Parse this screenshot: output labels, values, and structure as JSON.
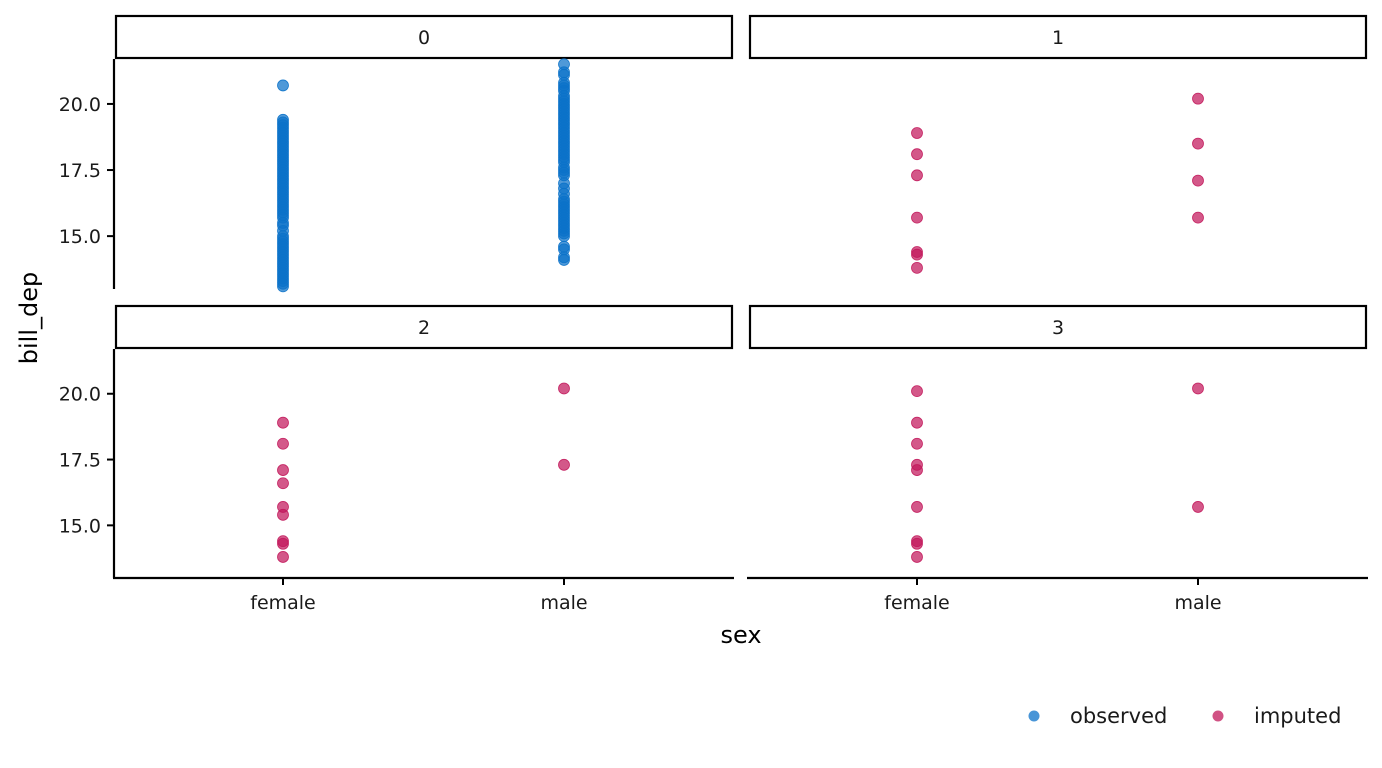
{
  "colors": {
    "observed": "#0b72c9",
    "imputed": "#c2185b"
  },
  "chart_data": {
    "type": "scatter",
    "facet_by": "imputation",
    "facets": [
      "0",
      "1",
      "2",
      "3"
    ],
    "xlabel": "sex",
    "ylabel": "bill_dep",
    "categories": [
      "female",
      "male"
    ],
    "ylim": [
      13.0,
      21.7
    ],
    "yticks": [
      15.0,
      17.5,
      20.0
    ],
    "ytick_labels": [
      "15.0",
      "17.5",
      "20.0"
    ],
    "grid": false,
    "legend": {
      "position": "bottom-right",
      "entries": [
        {
          "key": "observed",
          "label": "observed"
        },
        {
          "key": "imputed",
          "label": "imputed"
        }
      ]
    },
    "panels": [
      {
        "facet": "0",
        "series": [
          {
            "name": "observed",
            "points": [
              {
                "x": "female",
                "y": 20.7
              },
              {
                "x": "female",
                "y": 19.4
              },
              {
                "x": "female",
                "y": 19.3
              },
              {
                "x": "female",
                "y": 19.2
              },
              {
                "x": "female",
                "y": 19.1
              },
              {
                "x": "female",
                "y": 19.0
              },
              {
                "x": "female",
                "y": 18.9
              },
              {
                "x": "female",
                "y": 18.8
              },
              {
                "x": "female",
                "y": 18.7
              },
              {
                "x": "female",
                "y": 18.6
              },
              {
                "x": "female",
                "y": 18.5
              },
              {
                "x": "female",
                "y": 18.4
              },
              {
                "x": "female",
                "y": 18.3
              },
              {
                "x": "female",
                "y": 18.2
              },
              {
                "x": "female",
                "y": 18.1
              },
              {
                "x": "female",
                "y": 18.0
              },
              {
                "x": "female",
                "y": 17.9
              },
              {
                "x": "female",
                "y": 17.8
              },
              {
                "x": "female",
                "y": 17.7
              },
              {
                "x": "female",
                "y": 17.6
              },
              {
                "x": "female",
                "y": 17.5
              },
              {
                "x": "female",
                "y": 17.4
              },
              {
                "x": "female",
                "y": 17.3
              },
              {
                "x": "female",
                "y": 17.2
              },
              {
                "x": "female",
                "y": 17.1
              },
              {
                "x": "female",
                "y": 17.0
              },
              {
                "x": "female",
                "y": 16.9
              },
              {
                "x": "female",
                "y": 16.8
              },
              {
                "x": "female",
                "y": 16.7
              },
              {
                "x": "female",
                "y": 16.6
              },
              {
                "x": "female",
                "y": 16.5
              },
              {
                "x": "female",
                "y": 16.4
              },
              {
                "x": "female",
                "y": 16.3
              },
              {
                "x": "female",
                "y": 16.2
              },
              {
                "x": "female",
                "y": 16.1
              },
              {
                "x": "female",
                "y": 16.0
              },
              {
                "x": "female",
                "y": 15.9
              },
              {
                "x": "female",
                "y": 15.8
              },
              {
                "x": "female",
                "y": 15.7
              },
              {
                "x": "female",
                "y": 15.5
              },
              {
                "x": "female",
                "y": 15.4
              },
              {
                "x": "female",
                "y": 15.2
              },
              {
                "x": "female",
                "y": 15.0
              },
              {
                "x": "female",
                "y": 14.9
              },
              {
                "x": "female",
                "y": 14.8
              },
              {
                "x": "female",
                "y": 14.7
              },
              {
                "x": "female",
                "y": 14.6
              },
              {
                "x": "female",
                "y": 14.5
              },
              {
                "x": "female",
                "y": 14.4
              },
              {
                "x": "female",
                "y": 14.3
              },
              {
                "x": "female",
                "y": 14.2
              },
              {
                "x": "female",
                "y": 14.1
              },
              {
                "x": "female",
                "y": 14.0
              },
              {
                "x": "female",
                "y": 13.9
              },
              {
                "x": "female",
                "y": 13.8
              },
              {
                "x": "female",
                "y": 13.7
              },
              {
                "x": "female",
                "y": 13.6
              },
              {
                "x": "female",
                "y": 13.5
              },
              {
                "x": "female",
                "y": 13.4
              },
              {
                "x": "female",
                "y": 13.3
              },
              {
                "x": "female",
                "y": 13.2
              },
              {
                "x": "female",
                "y": 13.1
              },
              {
                "x": "male",
                "y": 21.5
              },
              {
                "x": "male",
                "y": 21.2
              },
              {
                "x": "male",
                "y": 21.1
              },
              {
                "x": "male",
                "y": 20.8
              },
              {
                "x": "male",
                "y": 20.7
              },
              {
                "x": "male",
                "y": 20.6
              },
              {
                "x": "male",
                "y": 20.5
              },
              {
                "x": "male",
                "y": 20.3
              },
              {
                "x": "male",
                "y": 20.2
              },
              {
                "x": "male",
                "y": 20.1
              },
              {
                "x": "male",
                "y": 20.0
              },
              {
                "x": "male",
                "y": 19.9
              },
              {
                "x": "male",
                "y": 19.8
              },
              {
                "x": "male",
                "y": 19.7
              },
              {
                "x": "male",
                "y": 19.6
              },
              {
                "x": "male",
                "y": 19.5
              },
              {
                "x": "male",
                "y": 19.4
              },
              {
                "x": "male",
                "y": 19.3
              },
              {
                "x": "male",
                "y": 19.2
              },
              {
                "x": "male",
                "y": 19.1
              },
              {
                "x": "male",
                "y": 19.0
              },
              {
                "x": "male",
                "y": 18.9
              },
              {
                "x": "male",
                "y": 18.8
              },
              {
                "x": "male",
                "y": 18.7
              },
              {
                "x": "male",
                "y": 18.6
              },
              {
                "x": "male",
                "y": 18.5
              },
              {
                "x": "male",
                "y": 18.4
              },
              {
                "x": "male",
                "y": 18.3
              },
              {
                "x": "male",
                "y": 18.2
              },
              {
                "x": "male",
                "y": 18.1
              },
              {
                "x": "male",
                "y": 18.0
              },
              {
                "x": "male",
                "y": 17.9
              },
              {
                "x": "male",
                "y": 17.8
              },
              {
                "x": "male",
                "y": 17.6
              },
              {
                "x": "male",
                "y": 17.5
              },
              {
                "x": "male",
                "y": 17.4
              },
              {
                "x": "male",
                "y": 17.3
              },
              {
                "x": "male",
                "y": 17.0
              },
              {
                "x": "male",
                "y": 16.8
              },
              {
                "x": "male",
                "y": 16.6
              },
              {
                "x": "male",
                "y": 16.4
              },
              {
                "x": "male",
                "y": 16.3
              },
              {
                "x": "male",
                "y": 16.2
              },
              {
                "x": "male",
                "y": 16.1
              },
              {
                "x": "male",
                "y": 16.0
              },
              {
                "x": "male",
                "y": 15.9
              },
              {
                "x": "male",
                "y": 15.8
              },
              {
                "x": "male",
                "y": 15.7
              },
              {
                "x": "male",
                "y": 15.6
              },
              {
                "x": "male",
                "y": 15.5
              },
              {
                "x": "male",
                "y": 15.4
              },
              {
                "x": "male",
                "y": 15.3
              },
              {
                "x": "male",
                "y": 15.2
              },
              {
                "x": "male",
                "y": 15.1
              },
              {
                "x": "male",
                "y": 15.0
              },
              {
                "x": "male",
                "y": 14.6
              },
              {
                "x": "male",
                "y": 14.5
              },
              {
                "x": "male",
                "y": 14.2
              },
              {
                "x": "male",
                "y": 14.1
              }
            ]
          }
        ]
      },
      {
        "facet": "1",
        "series": [
          {
            "name": "imputed",
            "points": [
              {
                "x": "female",
                "y": 18.9
              },
              {
                "x": "female",
                "y": 18.1
              },
              {
                "x": "female",
                "y": 17.3
              },
              {
                "x": "female",
                "y": 15.7
              },
              {
                "x": "female",
                "y": 14.4
              },
              {
                "x": "female",
                "y": 14.3
              },
              {
                "x": "female",
                "y": 13.8
              },
              {
                "x": "male",
                "y": 20.2
              },
              {
                "x": "male",
                "y": 18.5
              },
              {
                "x": "male",
                "y": 17.1
              },
              {
                "x": "male",
                "y": 15.7
              }
            ]
          }
        ]
      },
      {
        "facet": "2",
        "series": [
          {
            "name": "imputed",
            "points": [
              {
                "x": "female",
                "y": 18.9
              },
              {
                "x": "female",
                "y": 18.1
              },
              {
                "x": "female",
                "y": 17.1
              },
              {
                "x": "female",
                "y": 16.6
              },
              {
                "x": "female",
                "y": 15.7
              },
              {
                "x": "female",
                "y": 15.4
              },
              {
                "x": "female",
                "y": 14.4
              },
              {
                "x": "female",
                "y": 14.3
              },
              {
                "x": "female",
                "y": 13.8
              },
              {
                "x": "male",
                "y": 20.2
              },
              {
                "x": "male",
                "y": 17.3
              }
            ]
          }
        ]
      },
      {
        "facet": "3",
        "series": [
          {
            "name": "imputed",
            "points": [
              {
                "x": "female",
                "y": 20.1
              },
              {
                "x": "female",
                "y": 18.9
              },
              {
                "x": "female",
                "y": 18.1
              },
              {
                "x": "female",
                "y": 17.3
              },
              {
                "x": "female",
                "y": 17.1
              },
              {
                "x": "female",
                "y": 15.7
              },
              {
                "x": "female",
                "y": 14.4
              },
              {
                "x": "female",
                "y": 14.3
              },
              {
                "x": "female",
                "y": 13.8
              },
              {
                "x": "male",
                "y": 20.2
              },
              {
                "x": "male",
                "y": 15.7
              }
            ]
          }
        ]
      }
    ]
  }
}
